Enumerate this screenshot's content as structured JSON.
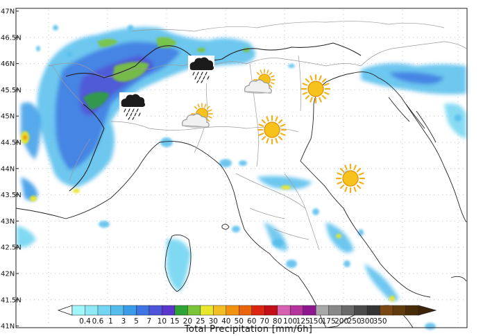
{
  "map": {
    "latitude_labels": [
      "47N",
      "46.5N",
      "46N",
      "45.5N",
      "45N",
      "44.5N",
      "44N",
      "43.5N",
      "43N",
      "42.5N",
      "42N",
      "41.5N",
      "41N"
    ],
    "colorbar": {
      "title": "Total Precipitation [mm/6h]",
      "ticks": [
        "0.4",
        "0.6",
        "1",
        "3",
        "5",
        "7",
        "10",
        "15",
        "20",
        "25",
        "30",
        "40",
        "50",
        "60",
        "70",
        "80",
        "100",
        "125",
        "150",
        "175",
        "200",
        "250",
        "300",
        "350"
      ],
      "colors": [
        "#a0f6fa",
        "#8ee9f5",
        "#72d5f1",
        "#54bdec",
        "#3a9be8",
        "#3d76e2",
        "#4d55d8",
        "#5a36cd",
        "#2ea336",
        "#7ac43a",
        "#e8e72c",
        "#f1bf23",
        "#f2930f",
        "#e9640a",
        "#dc2510",
        "#c40f17",
        "#d761b1",
        "#b4349b",
        "#8e1790",
        "#a8a8a8",
        "#888888",
        "#6a6a6a",
        "#4a4a4a",
        "#343434",
        "#7a4812",
        "#613a0d",
        "#4a2c08"
      ]
    },
    "weather_icons": [
      {
        "type": "rain-cloud"
      },
      {
        "type": "rain-cloud"
      },
      {
        "type": "sun-cloud"
      },
      {
        "type": "sun-cloud"
      },
      {
        "type": "sun"
      },
      {
        "type": "sun"
      },
      {
        "type": "sun"
      }
    ]
  }
}
